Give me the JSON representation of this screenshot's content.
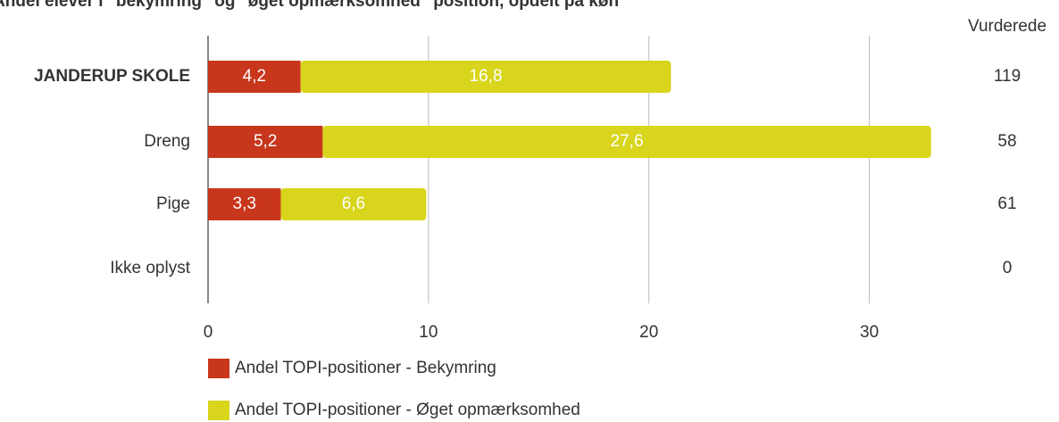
{
  "chart_data": {
    "type": "bar",
    "orientation": "horizontal",
    "stacked": true,
    "title": "Andel elever i \"bekymring\" og \"øget opmærksomhed\" position, opdelt på køn",
    "categories": [
      "JANDERUP SKOLE",
      "Dreng",
      "Pige",
      "Ikke oplyst"
    ],
    "series": [
      {
        "name": "Andel TOPI-positioner - Bekymring",
        "color": "#c8361b",
        "values": [
          4.2,
          5.2,
          3.3,
          null
        ],
        "value_labels": [
          "4,2",
          "5,2",
          "3,3",
          null
        ]
      },
      {
        "name": "Andel TOPI-positioner - Øget opmærksomhed",
        "color": "#d8d51c",
        "values": [
          16.8,
          27.6,
          6.6,
          null
        ],
        "value_labels": [
          "16,8",
          "27,6",
          "6,6",
          null
        ]
      }
    ],
    "xlim": [
      0,
      35
    ],
    "xticks": [
      0,
      10,
      20,
      30
    ],
    "grid": true,
    "table_column": {
      "header": "Vurderede",
      "values": [
        119,
        58,
        61,
        0
      ]
    }
  }
}
